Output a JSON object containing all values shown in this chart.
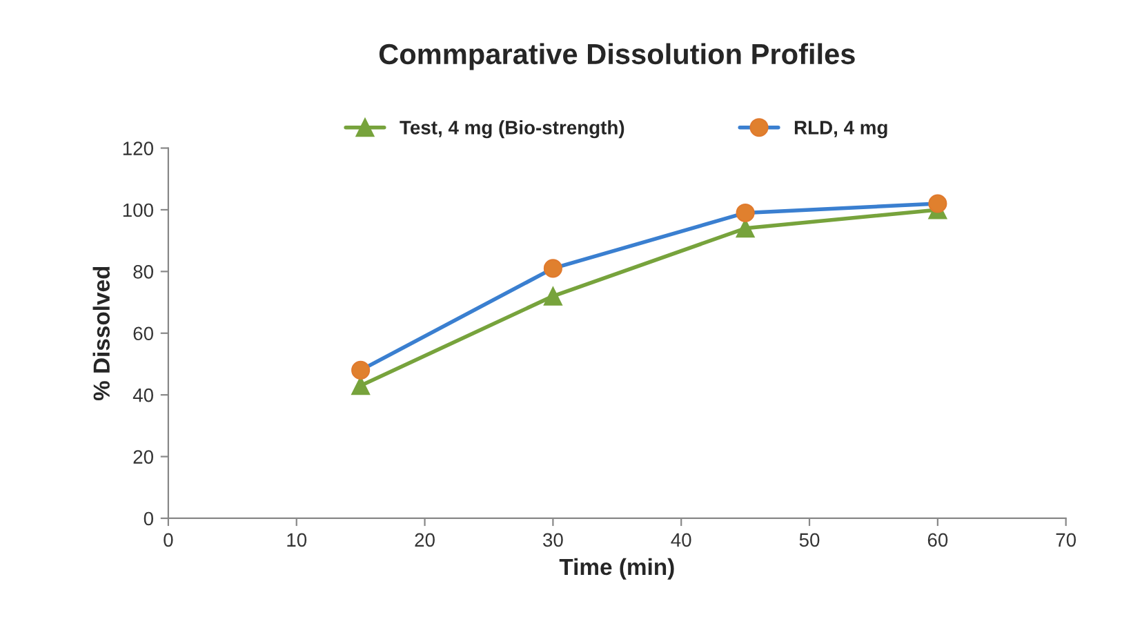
{
  "chart_data": {
    "type": "line",
    "title": "Commparative Dissolution Profiles",
    "xlabel": "Time (min)",
    "ylabel": "% Dissolved",
    "x": [
      15,
      30,
      45,
      60
    ],
    "series": [
      {
        "name": "Test, 4 mg (Bio-strength)",
        "color": "#77a33c",
        "marker": "triangle",
        "values": [
          43,
          72,
          94,
          100
        ]
      },
      {
        "name": "RLD, 4 mg",
        "color": "#3a7fd0",
        "marker": "circle",
        "values": [
          48,
          81,
          99,
          102
        ]
      }
    ],
    "xlim": [
      0,
      70
    ],
    "xticks": [
      0,
      10,
      20,
      30,
      40,
      50,
      60,
      70
    ],
    "ylim": [
      0,
      120
    ],
    "yticks": [
      0,
      20,
      40,
      60,
      80,
      100,
      120
    ],
    "grid": false,
    "legend": "top",
    "line_style": "solid"
  }
}
